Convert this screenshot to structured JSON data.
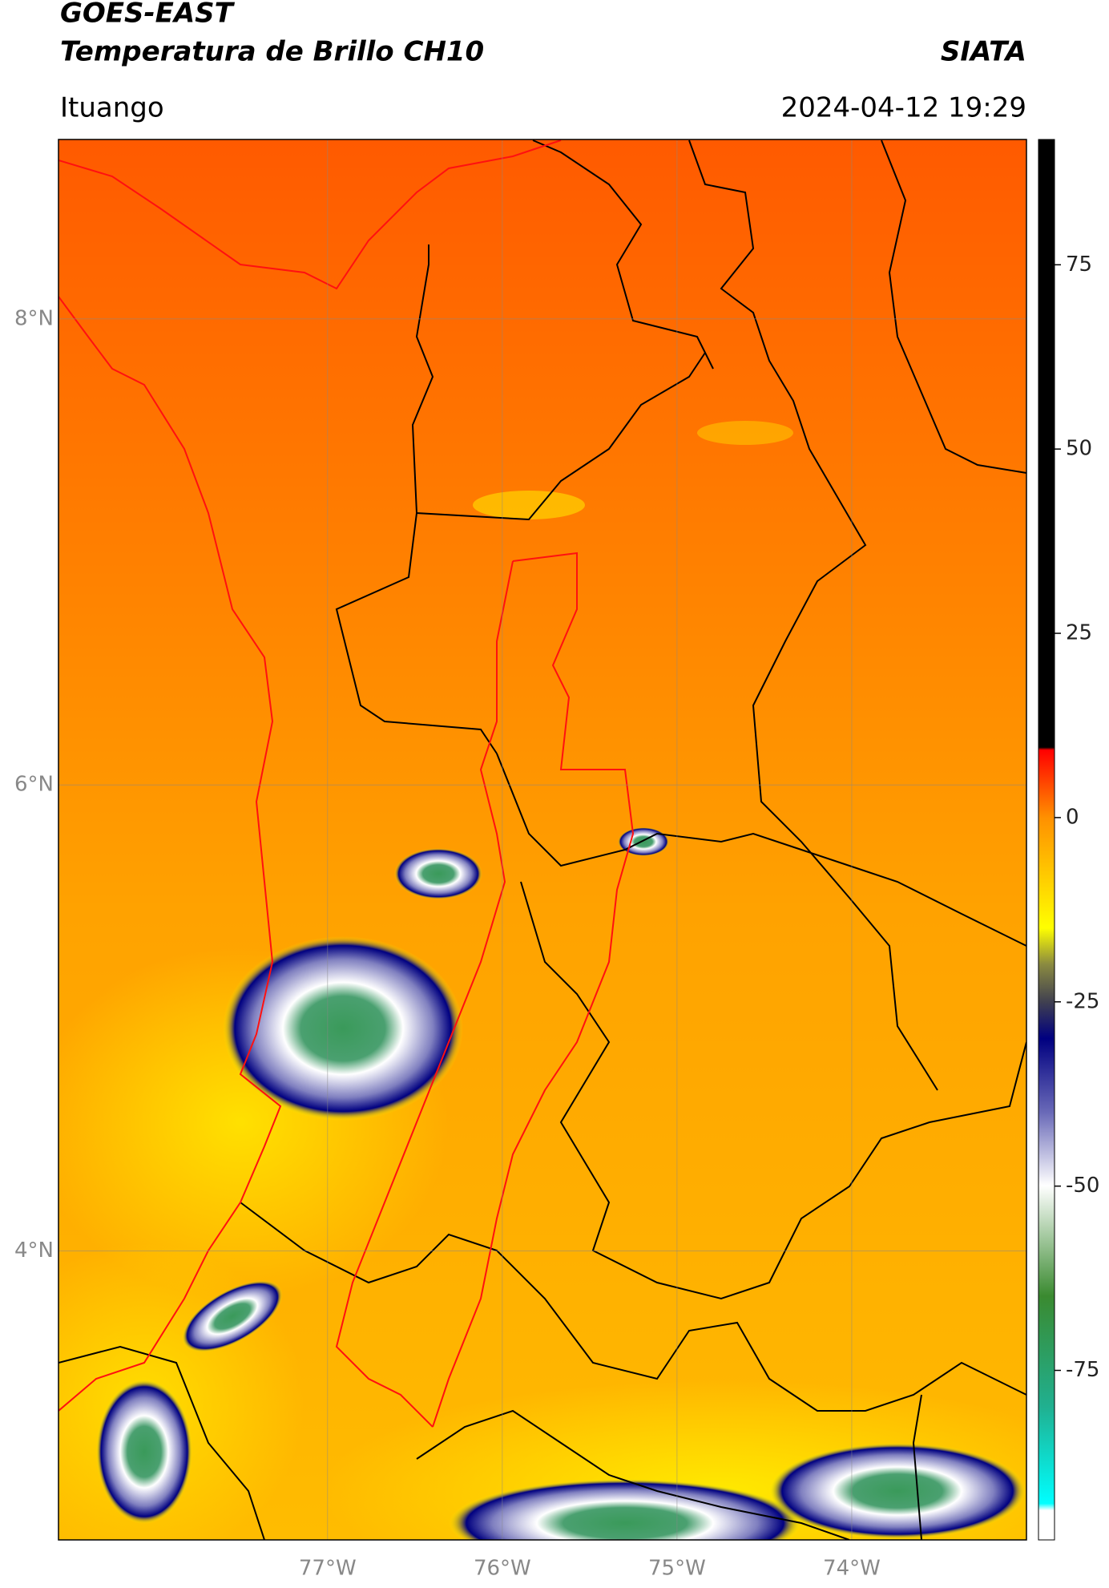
{
  "map": {
    "title": "GOES-EAST",
    "subtitle": "Temperatura de Brillo CH10",
    "agency": "SIATA",
    "region": "Ituango",
    "datetime": "2024-04-12 19:29",
    "xlim": [
      -78.54,
      -73.0
    ],
    "ylim": [
      2.76,
      8.77
    ],
    "xticks": [
      {
        "value": -77,
        "label": "77°W"
      },
      {
        "value": -76,
        "label": "76°W"
      },
      {
        "value": -75,
        "label": "75°W"
      },
      {
        "value": -74,
        "label": "74°W"
      }
    ],
    "yticks": [
      {
        "value": 4,
        "label": "4°N"
      },
      {
        "value": 6,
        "label": "6°N"
      },
      {
        "value": 8,
        "label": "8°N"
      }
    ],
    "grid": true,
    "colorbar": {
      "lim": [
        -98,
        92
      ],
      "ticks": [
        75,
        50,
        25,
        0,
        -25,
        -50,
        -75
      ]
    }
  }
}
